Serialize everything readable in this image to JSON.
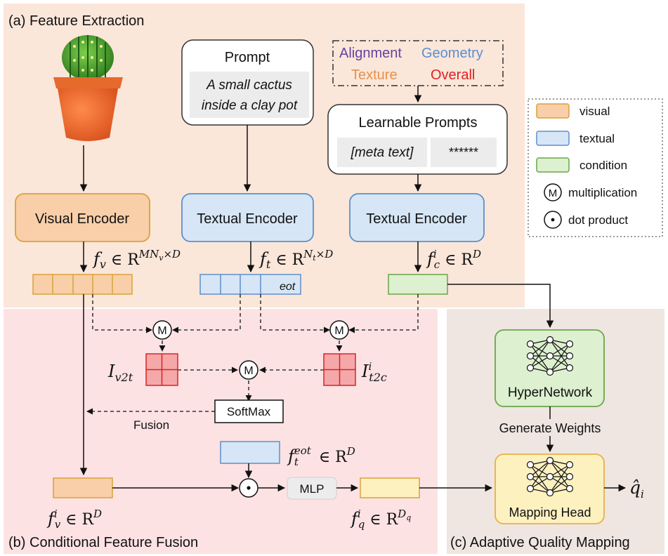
{
  "sections": {
    "a_title": "(a) Feature Extraction",
    "b_title": "(b) Conditional Feature Fusion",
    "c_title": "(c) Adaptive Quality Mapping"
  },
  "prompt": {
    "title": "Prompt",
    "line1": "A small cactus",
    "line2": "inside a clay pot"
  },
  "aspects": {
    "alignment": "Alignment",
    "geometry": "Geometry",
    "texture": "Texture",
    "overall": "Overall"
  },
  "learnable": {
    "title": "Learnable Prompts",
    "meta": "[meta text]",
    "stars": "******"
  },
  "encoders": {
    "visual": "Visual Encoder",
    "textual1": "Textual Encoder",
    "textual2": "Textual Encoder"
  },
  "features": {
    "eot": "eot"
  },
  "ops": {
    "m": "M",
    "softmax": "SoftMax",
    "fusion": "Fusion",
    "mlp": "MLP"
  },
  "network": {
    "hypernetwork": "HyperNetwork",
    "generate_weights": "Generate Weights",
    "mapping_head": "Mapping Head"
  },
  "legend": {
    "visual": "visual",
    "textual": "textual",
    "condition": "condition",
    "multiplication": "multiplication",
    "dot_product": "dot product",
    "colors": {
      "visual": "#f8cfa8",
      "textual": "#d6e6f6",
      "condition": "#ddf0cf"
    }
  },
  "colors": {
    "alignment": "#6a3fa0",
    "geometry": "#5b8fd0",
    "texture": "#e89048",
    "overall": "#e02020",
    "panel_a": "#fbe6da",
    "panel_b": "#fde2e4",
    "panel_c": "#efe6e1"
  }
}
